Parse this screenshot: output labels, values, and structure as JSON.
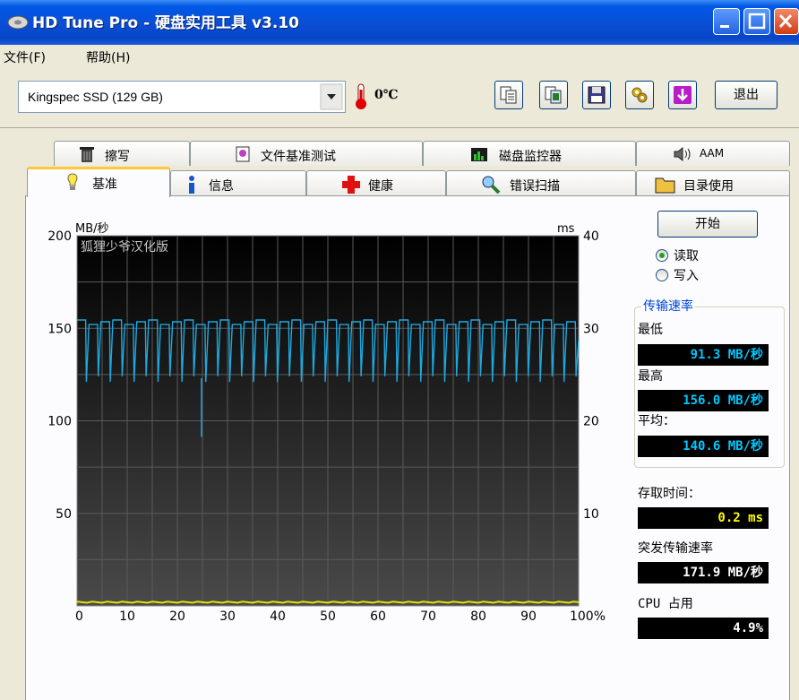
{
  "window": {
    "title": "HD Tune Pro - 硬盘实用工具 v3.10"
  },
  "menu": {
    "file": "文件(F)",
    "help": "帮助(H)"
  },
  "toolbar": {
    "drive": "Kingspec SSD (129 GB)",
    "temperature": "0℃",
    "exit_label": "退出"
  },
  "tabs": {
    "row1": [
      {
        "label": "擦写",
        "icon": "trash-icon"
      },
      {
        "label": "文件基准测试",
        "icon": "file-benchmark-icon"
      },
      {
        "label": "磁盘监控器",
        "icon": "disk-monitor-icon"
      },
      {
        "label": "AAM",
        "icon": "speaker-icon"
      }
    ],
    "row2": [
      {
        "label": "基准",
        "icon": "bulb-icon",
        "active": true
      },
      {
        "label": "信息",
        "icon": "info-icon"
      },
      {
        "label": "健康",
        "icon": "health-cross-icon"
      },
      {
        "label": "错误扫描",
        "icon": "magnifier-icon"
      },
      {
        "label": "目录使用",
        "icon": "folder-icon"
      }
    ]
  },
  "controls": {
    "start_label": "开始",
    "read_label": "读取",
    "write_label": "写入",
    "mode": "read"
  },
  "stats": {
    "group_title": "传输速率",
    "min_label": "最低",
    "min_value": "91.3 MB/秒",
    "max_label": "最高",
    "max_value": "156.0 MB/秒",
    "avg_label": "平均：",
    "avg_value": "140.6 MB/秒",
    "access_label": "存取时间：",
    "access_value": "0.2 ms",
    "burst_label": "突发传输速率",
    "burst_value": "171.9 MB/秒",
    "cpu_label": "CPU 占用",
    "cpu_value": "4.9%"
  },
  "chart_data": {
    "type": "line",
    "watermark": "狐狸少爷汉化版",
    "left_unit": "MB/秒",
    "right_unit": "ms",
    "left_ticks": [
      "200",
      "150",
      "100",
      "50"
    ],
    "right_ticks": [
      "40",
      "30",
      "20",
      "10"
    ],
    "x_ticks": [
      "0",
      "10",
      "20",
      "30",
      "40",
      "50",
      "60",
      "70",
      "80",
      "90",
      "100%"
    ],
    "xlim": [
      0,
      100
    ],
    "ylim_left": [
      0,
      200
    ],
    "ylim_right": [
      0,
      40
    ],
    "grid": true,
    "series": [
      {
        "color": "#1ea8e0",
        "pattern": {
          "teeth": 42,
          "peak": 154,
          "trough": 121
        },
        "spikes": [
          {
            "x": 24.8,
            "y": 91.3
          }
        ]
      },
      {
        "color": "#e8e000",
        "pattern": {
          "level": 0.2
        }
      }
    ]
  },
  "colors": {
    "read_line": "#1ea8e0",
    "access_line": "#e8e000",
    "lcd_text": "#00c8ff"
  }
}
